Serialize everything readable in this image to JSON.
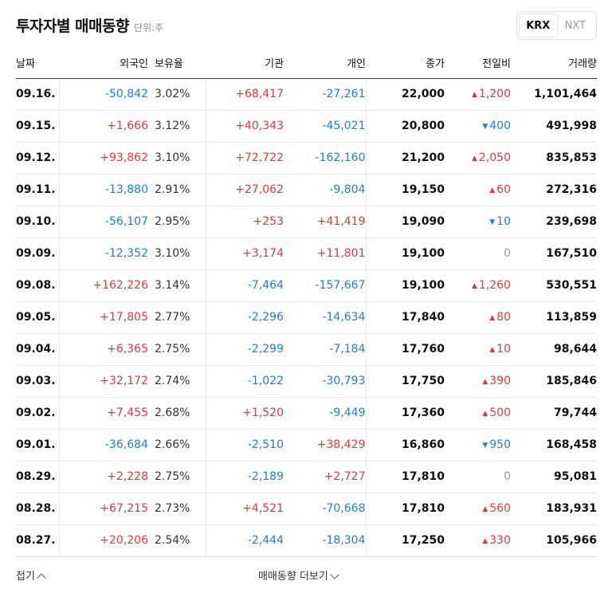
{
  "header": {
    "title": "투자자별 매매동향",
    "unit": "단위:주"
  },
  "market_toggle": {
    "options": [
      "KRX",
      "NXT"
    ],
    "selected": "KRX"
  },
  "columns": [
    "날짜",
    "외국인",
    "보유율",
    "기관",
    "개인",
    "종가",
    "전일비",
    "거래량"
  ],
  "rows": [
    {
      "date": "09.16.",
      "foreign": "-50,842",
      "rate": "3.02%",
      "inst": "+68,417",
      "indiv": "-27,261",
      "close": "22,000",
      "dir": "up",
      "change": "1,200",
      "volume": "1,101,464"
    },
    {
      "date": "09.15.",
      "foreign": "+1,666",
      "rate": "3.12%",
      "inst": "+40,343",
      "indiv": "-45,021",
      "close": "20,800",
      "dir": "down",
      "change": "400",
      "volume": "491,998"
    },
    {
      "date": "09.12.",
      "foreign": "+93,862",
      "rate": "3.10%",
      "inst": "+72,722",
      "indiv": "-162,160",
      "close": "21,200",
      "dir": "up",
      "change": "2,050",
      "volume": "835,853"
    },
    {
      "date": "09.11.",
      "foreign": "-13,880",
      "rate": "2.91%",
      "inst": "+27,062",
      "indiv": "-9,804",
      "close": "19,150",
      "dir": "up",
      "change": "60",
      "volume": "272,316"
    },
    {
      "date": "09.10.",
      "foreign": "-56,107",
      "rate": "2.95%",
      "inst": "+253",
      "indiv": "+41,419",
      "close": "19,090",
      "dir": "down",
      "change": "10",
      "volume": "239,698"
    },
    {
      "date": "09.09.",
      "foreign": "-12,352",
      "rate": "3.10%",
      "inst": "+3,174",
      "indiv": "+11,801",
      "close": "19,100",
      "dir": "flat",
      "change": "0",
      "volume": "167,510"
    },
    {
      "date": "09.08.",
      "foreign": "+162,226",
      "rate": "3.14%",
      "inst": "-7,464",
      "indiv": "-157,667",
      "close": "19,100",
      "dir": "up",
      "change": "1,260",
      "volume": "530,551"
    },
    {
      "date": "09.05.",
      "foreign": "+17,805",
      "rate": "2.77%",
      "inst": "-2,296",
      "indiv": "-14,634",
      "close": "17,840",
      "dir": "up",
      "change": "80",
      "volume": "113,859"
    },
    {
      "date": "09.04.",
      "foreign": "+6,365",
      "rate": "2.75%",
      "inst": "-2,299",
      "indiv": "-7,184",
      "close": "17,760",
      "dir": "up",
      "change": "10",
      "volume": "98,644"
    },
    {
      "date": "09.03.",
      "foreign": "+32,172",
      "rate": "2.74%",
      "inst": "-1,022",
      "indiv": "-30,793",
      "close": "17,750",
      "dir": "up",
      "change": "390",
      "volume": "185,846"
    },
    {
      "date": "09.02.",
      "foreign": "+7,455",
      "rate": "2.68%",
      "inst": "+1,520",
      "indiv": "-9,449",
      "close": "17,360",
      "dir": "up",
      "change": "500",
      "volume": "79,744"
    },
    {
      "date": "09.01.",
      "foreign": "-36,684",
      "rate": "2.66%",
      "inst": "-2,510",
      "indiv": "+38,429",
      "close": "16,860",
      "dir": "down",
      "change": "950",
      "volume": "168,458"
    },
    {
      "date": "08.29.",
      "foreign": "+2,228",
      "rate": "2.75%",
      "inst": "-2,189",
      "indiv": "+2,727",
      "close": "17,810",
      "dir": "flat",
      "change": "0",
      "volume": "95,081"
    },
    {
      "date": "08.28.",
      "foreign": "+67,215",
      "rate": "2.73%",
      "inst": "+4,521",
      "indiv": "-70,668",
      "close": "17,810",
      "dir": "up",
      "change": "560",
      "volume": "183,931"
    },
    {
      "date": "08.27.",
      "foreign": "+20,206",
      "rate": "2.54%",
      "inst": "-2,444",
      "indiv": "-18,304",
      "close": "17,250",
      "dir": "up",
      "change": "330",
      "volume": "105,966"
    }
  ],
  "footer": {
    "fold_label": "접기",
    "more_label": "매매동향 더보기"
  },
  "colors": {
    "positive": "#e5353f",
    "negative": "#1a7fe0",
    "flat": "#9a9a9a"
  },
  "icons": {
    "up": "triangle-up-icon",
    "down": "triangle-down-icon",
    "fold": "chevron-up-icon",
    "more": "chevron-down-icon"
  }
}
